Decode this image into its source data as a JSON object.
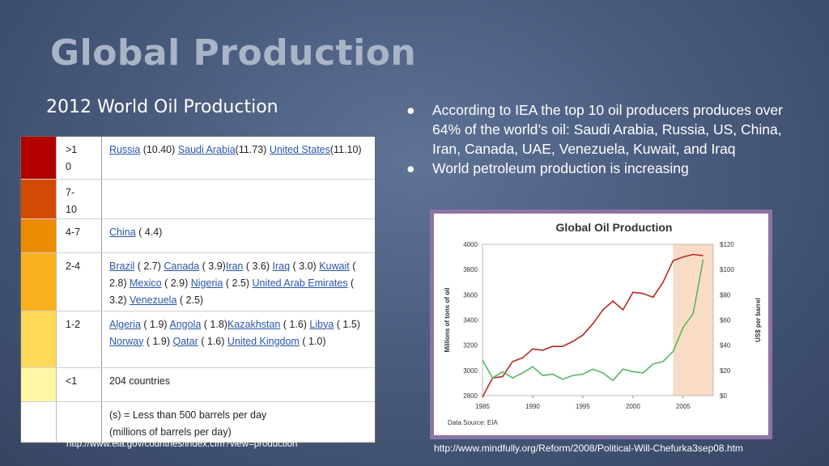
{
  "slide": {
    "title": "Global Production",
    "subtitle": "2012 World Oil Production",
    "bullets": [
      "According to IEA the top 10 oil producers produces over 64% of the world’s oil: Saudi Arabia, Russia, US, China, Iran, Canada, UAE, Venezuela, Kuwait, and Iraq",
      "World petroleum production is increasing"
    ],
    "bullet_glyph": "●",
    "source_left": "http://www.eia.gov/countries/index.cfm?view=production",
    "source_right": "http://www.mindfully.org/Reform/2008/Political-Will-Chefurka3sep08.htm"
  },
  "table": {
    "rows": [
      {
        "color": "#b20000",
        "range": ">1\n0",
        "items": [
          {
            "t": "Russia",
            "l": true
          },
          {
            "t": " (10.40) ",
            "l": false
          },
          {
            "t": "Saudi Arabia",
            "l": true
          },
          {
            "t": "(11.73) ",
            "l": false
          },
          {
            "t": "United States",
            "l": true
          },
          {
            "t": "(11.10)",
            "l": false
          }
        ]
      },
      {
        "color": "#d34a05",
        "range": "7-\n10",
        "items": []
      },
      {
        "color": "#ec8a00",
        "range": "4-7",
        "items": [
          {
            "t": "China",
            "l": true
          },
          {
            "t": " ( 4.4)",
            "l": false
          }
        ]
      },
      {
        "color": "#f9b21e",
        "range": "2-4",
        "items": [
          {
            "t": "Brazil",
            "l": true
          },
          {
            "t": " ( 2.7) ",
            "l": false
          },
          {
            "t": "Canada",
            "l": true
          },
          {
            "t": " ( 3.9)",
            "l": false
          },
          {
            "t": "Iran",
            "l": true
          },
          {
            "t": " ( 3.6) ",
            "l": false
          },
          {
            "t": "Iraq",
            "l": true
          },
          {
            "t": " ( 3.0) ",
            "l": false
          },
          {
            "t": "Kuwait",
            "l": true
          },
          {
            "t": " ( 2.8) ",
            "l": false
          },
          {
            "t": "Mexico",
            "l": true
          },
          {
            "t": " ( 2.9) ",
            "l": false
          },
          {
            "t": "Nigeria",
            "l": true
          },
          {
            "t": " ( 2.5) ",
            "l": false
          },
          {
            "t": "United Arab Emirates",
            "l": true
          },
          {
            "t": " ( 3.2) ",
            "l": false
          },
          {
            "t": "Venezuela",
            "l": true
          },
          {
            "t": " ( 2.5)",
            "l": false
          }
        ]
      },
      {
        "color": "#fdd95a",
        "range": "1-2",
        "items": [
          {
            "t": "Algeria",
            "l": true
          },
          {
            "t": " ( 1.9) ",
            "l": false
          },
          {
            "t": "Angola",
            "l": true
          },
          {
            "t": " ( 1.8)",
            "l": false
          },
          {
            "t": "Kazakhstan",
            "l": true
          },
          {
            "t": " ( 1.6) ",
            "l": false
          },
          {
            "t": "Libya",
            "l": true
          },
          {
            "t": " ( 1.5) ",
            "l": false
          },
          {
            "t": "Norway",
            "l": true
          },
          {
            "t": " ( 1.9) ",
            "l": false
          },
          {
            "t": "Qatar",
            "l": true
          },
          {
            "t": " ( 1.6) ",
            "l": false
          },
          {
            "t": "United Kingdom",
            "l": true
          },
          {
            "t": " ( 1.0)",
            "l": false
          }
        ]
      },
      {
        "color": "#fff7a6",
        "range": "<1",
        "items": [
          {
            "t": "204 countries",
            "l": false
          }
        ]
      },
      {
        "color": "#ffffff",
        "range": "",
        "items": [
          {
            "t": "(s) = Less than 500 barrels per day\n(millions of barrels per day)",
            "l": false
          }
        ]
      }
    ]
  },
  "chart_data": {
    "type": "line",
    "title": "Global Oil Production",
    "ylabel": "Millions of tons of oil",
    "y2label": "US$ per barrel",
    "source": "Data Source: EIA",
    "xlim": [
      1985,
      2008
    ],
    "ylim": [
      2800,
      4000
    ],
    "y2lim": [
      0,
      120
    ],
    "xticks": [
      "1985",
      "1990",
      "1995",
      "2000",
      "2005"
    ],
    "yticks": [
      "2800",
      "3000",
      "3200",
      "3400",
      "3600",
      "3800",
      "4000"
    ],
    "y2ticks": [
      "$0",
      "$20",
      "$40",
      "$60",
      "$80",
      "$100",
      "$120"
    ],
    "highlight": [
      2004,
      2008
    ],
    "series": [
      {
        "axis": "left",
        "color": "#b82a24",
        "x": [
          1985,
          1986,
          1987,
          1988,
          1989,
          1990,
          1991,
          1992,
          1993,
          1994,
          1995,
          1996,
          1997,
          1998,
          1999,
          2000,
          2001,
          2002,
          2003,
          2004,
          2005,
          2006,
          2007
        ],
        "y": [
          2790,
          2940,
          2950,
          3070,
          3100,
          3170,
          3160,
          3190,
          3190,
          3230,
          3280,
          3370,
          3480,
          3550,
          3480,
          3620,
          3610,
          3580,
          3700,
          3870,
          3900,
          3920,
          3910
        ]
      },
      {
        "axis": "right",
        "color": "#56b668",
        "x": [
          1985,
          1986,
          1987,
          1988,
          1989,
          1990,
          1991,
          1992,
          1993,
          1994,
          1995,
          1996,
          1997,
          1998,
          1999,
          2000,
          2001,
          2002,
          2003,
          2004,
          2005,
          2006,
          2007
        ],
        "y": [
          28,
          14,
          19,
          14,
          18,
          23,
          16,
          17,
          13,
          16,
          17,
          21,
          18,
          12,
          21,
          19,
          18,
          25,
          27,
          35,
          54,
          65,
          108
        ]
      }
    ]
  }
}
